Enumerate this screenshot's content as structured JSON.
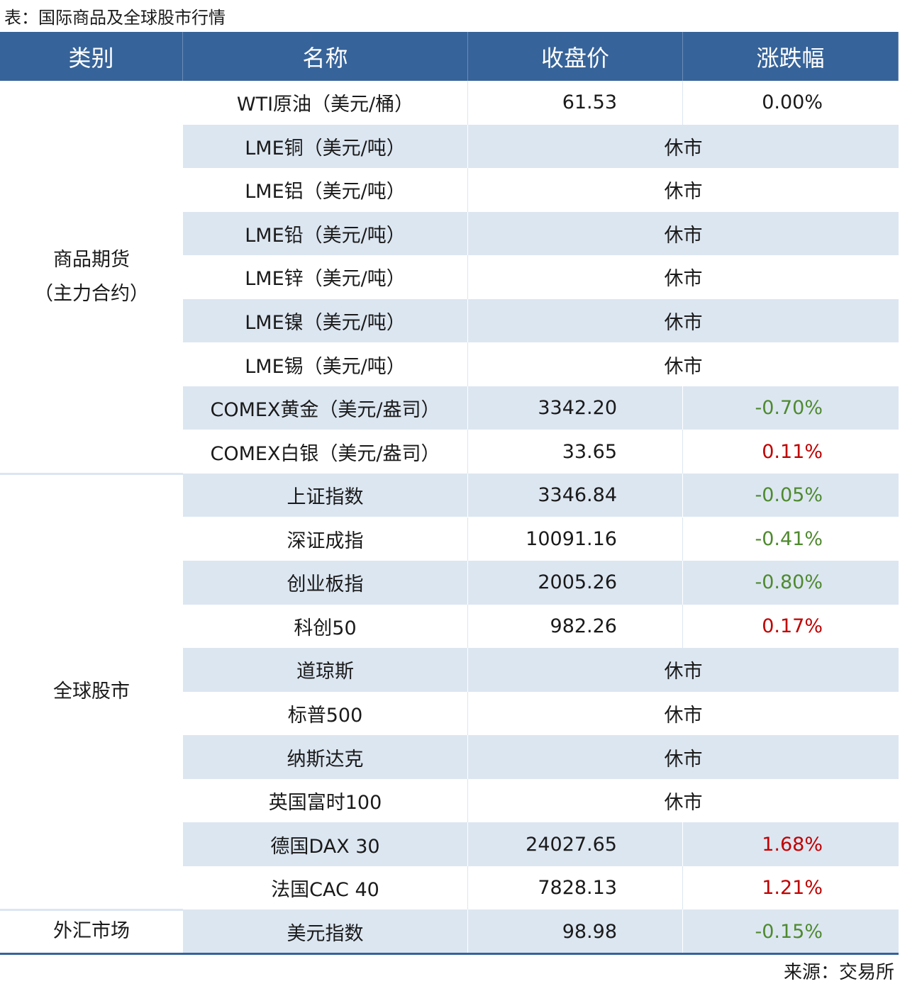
{
  "title": "表：国际商品及全球股市行情",
  "table": {
    "header": [
      "类别",
      "名称",
      "收盘价",
      "涨跌幅"
    ],
    "groups": [
      {
        "category": [
          "商品期货",
          "（主力合约）"
        ],
        "rows": [
          {
            "name": "WTI原油（美元/桶）",
            "close": "61.53",
            "change": "0.00%"
          },
          {
            "name": "LME铜（美元/吨）",
            "status": "休市"
          },
          {
            "name": "LME铝（美元/吨）",
            "status": "休市"
          },
          {
            "name": "LME铅（美元/吨）",
            "status": "休市"
          },
          {
            "name": "LME锌（美元/吨）",
            "status": "休市"
          },
          {
            "name": "LME镍（美元/吨）",
            "status": "休市"
          },
          {
            "name": "LME锡（美元/吨）",
            "status": "休市"
          },
          {
            "name": "COMEX黄金（美元/盎司）",
            "close": "3342.20",
            "change": "-0.70%"
          },
          {
            "name": "COMEX白银（美元/盎司）",
            "close": "33.65",
            "change": "0.11%"
          }
        ]
      },
      {
        "category": [
          "全球股市"
        ],
        "rows": [
          {
            "name": "上证指数",
            "close": "3346.84",
            "change": "-0.05%"
          },
          {
            "name": "深证成指",
            "close": "10091.16",
            "change": "-0.41%"
          },
          {
            "name": "创业板指",
            "close": "2005.26",
            "change": "-0.80%"
          },
          {
            "name": "科创50",
            "close": "982.26",
            "change": "0.17%"
          },
          {
            "name": "道琼斯",
            "status": "休市"
          },
          {
            "name": "标普500",
            "status": "休市"
          },
          {
            "name": "纳斯达克",
            "status": "休市"
          },
          {
            "name": "英国富时100",
            "status": "休市"
          },
          {
            "name": "德国DAX 30",
            "close": "24027.65",
            "change": "1.68%"
          },
          {
            "name": "法国CAC 40",
            "close": "7828.13",
            "change": "1.21%"
          }
        ]
      },
      {
        "category": [
          "外汇市场"
        ],
        "rows": [
          {
            "name": "美元指数",
            "close": "98.98",
            "change": "-0.15%"
          }
        ]
      }
    ]
  },
  "source": "来源：交易所"
}
